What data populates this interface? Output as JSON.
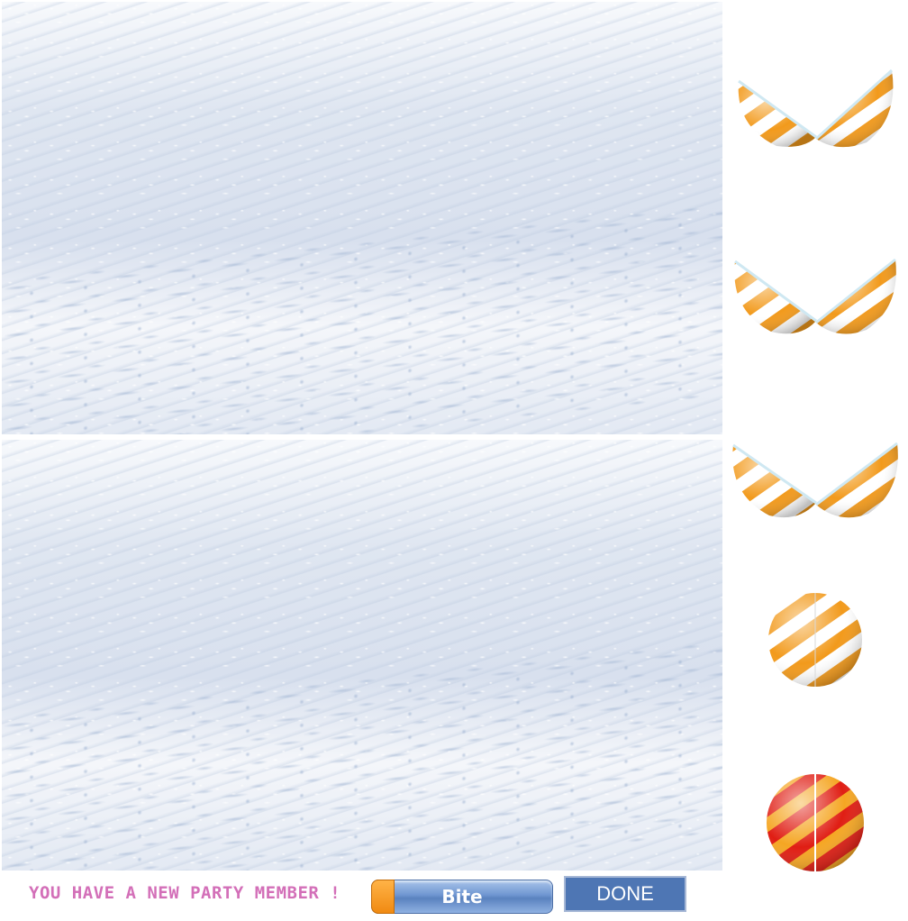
{
  "status": {
    "message": "YOU HAVE A NEW PARTY MEMBER !"
  },
  "actions": {
    "bite_label": "Bite",
    "done_label": "DONE"
  },
  "eggs": [
    {
      "state": "open",
      "stripe": "#f29a1c"
    },
    {
      "state": "open",
      "stripe": "#f29a1c"
    },
    {
      "state": "open",
      "stripe": "#f29a1c"
    },
    {
      "state": "closed",
      "stripe": "#f29a1c"
    },
    {
      "state": "closed",
      "stripe": "#e01e14"
    }
  ],
  "colors": {
    "accent": "#4e76b4",
    "message": "#d36fb8",
    "egg_white": "#ffffff",
    "egg_orange": "#f29a1c",
    "egg_red": "#e01e14"
  }
}
